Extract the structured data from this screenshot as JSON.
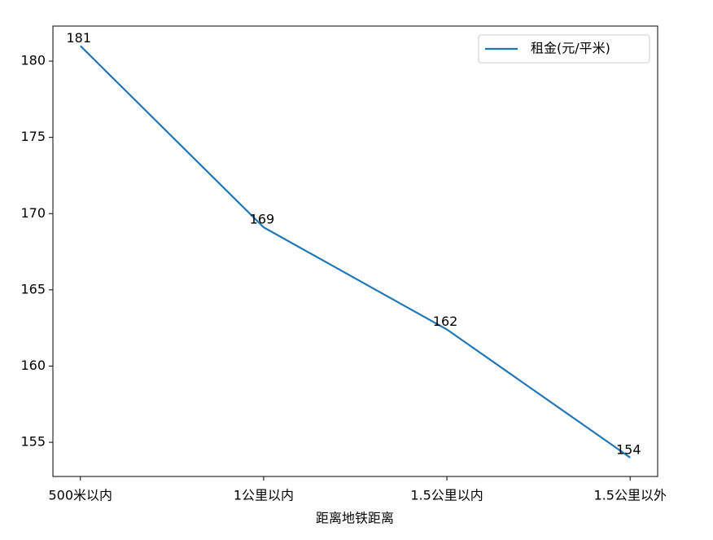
{
  "chart_data": {
    "type": "line",
    "x_label": "距离地铁距离",
    "categories": [
      "500米以内",
      "1公里以内",
      "1.5公里以内",
      "1.5公里以外"
    ],
    "series": [
      {
        "name": "租金(元/平米)",
        "color": "#1f77b4",
        "values": [
          181.0,
          169.1,
          162.4,
          154.0
        ],
        "value_labels": [
          "181",
          "169",
          "162",
          "154"
        ]
      }
    ],
    "ylim": [
      152.76,
      182.3
    ],
    "yticks": [
      155,
      160,
      165,
      170,
      175,
      180
    ],
    "legend": "upper right",
    "grid": false
  }
}
